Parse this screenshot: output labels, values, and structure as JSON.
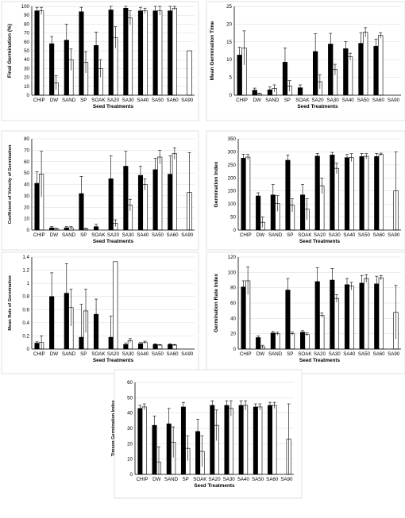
{
  "chart_data": [
    {
      "type": "bar",
      "ylabel": "Final Germination (%)",
      "xlabel": "Seed Treatments",
      "ylim": [
        0,
        100
      ],
      "yticks": [
        0,
        10,
        20,
        30,
        40,
        50,
        60,
        70,
        80,
        90,
        100
      ],
      "grid": true,
      "categories": [
        "CHIP",
        "DW",
        "SAND",
        "SP",
        "SOAK",
        "SA20",
        "SA30",
        "SA40",
        "SA50",
        "SA60",
        "SA90"
      ],
      "series": [
        {
          "values": [
            95,
            58,
            62,
            94,
            56,
            96,
            98,
            95,
            95,
            95,
            0
          ],
          "errors": [
            4,
            8,
            18,
            5,
            15,
            4,
            2,
            4,
            5,
            5,
            0
          ]
        },
        {
          "values": [
            95,
            14,
            40,
            37,
            30,
            65,
            87,
            95,
            95,
            98,
            50
          ],
          "errors": [
            4,
            8,
            12,
            12,
            10,
            12,
            8,
            3,
            5,
            2,
            0
          ]
        }
      ]
    },
    {
      "type": "bar",
      "ylabel": "Mean Germination Time",
      "xlabel": "Seed Treatments",
      "ylim": [
        0,
        25
      ],
      "yticks": [
        0,
        5,
        10,
        15,
        20,
        25
      ],
      "grid": true,
      "categories": [
        "CHIP",
        "DW",
        "SAND",
        "SP",
        "SOAK",
        "SA20",
        "SA30",
        "SA40",
        "SA50",
        "SA60",
        "SA90"
      ],
      "series": [
        {
          "values": [
            11.3,
            1.4,
            1.5,
            9.3,
            2.1,
            12.3,
            14.4,
            13.1,
            14.6,
            13.8,
            0
          ],
          "errors": [
            2.2,
            0.6,
            0.8,
            4,
            0.8,
            5,
            3,
            2,
            3,
            2,
            0
          ]
        },
        {
          "values": [
            13.3,
            0.4,
            1.9,
            2.6,
            0,
            3.8,
            7.2,
            10.8,
            17.7,
            16.8,
            0
          ],
          "errors": [
            4.8,
            0.2,
            1,
            1.5,
            0,
            2,
            1.5,
            1,
            1.3,
            0.8,
            0
          ]
        }
      ]
    },
    {
      "type": "bar",
      "ylabel": "Coefficient of Velocity of Germination",
      "xlabel": "Seed Treatments",
      "ylim": [
        0,
        80
      ],
      "yticks": [
        0,
        10,
        20,
        30,
        40,
        50,
        60,
        70,
        80
      ],
      "grid": true,
      "categories": [
        "CHIP",
        "DW",
        "SAND",
        "SP",
        "SOAK",
        "SA20",
        "SA30",
        "SA40",
        "SA50",
        "SA60",
        "SA90"
      ],
      "series": [
        {
          "values": [
            41,
            2,
            2,
            32,
            3,
            45,
            56,
            48,
            53,
            49,
            0
          ],
          "errors": [
            10,
            1,
            1,
            15,
            2,
            20,
            13,
            8,
            10,
            16,
            0
          ]
        },
        {
          "values": [
            49,
            1,
            2,
            1,
            0,
            6,
            22,
            40,
            64,
            67,
            33
          ],
          "errors": [
            20,
            0.5,
            1,
            0.5,
            0,
            3,
            5,
            5,
            6,
            5,
            35
          ]
        }
      ]
    },
    {
      "type": "bar",
      "ylabel": "Germination Index",
      "xlabel": "Seed Treatments",
      "ylim": [
        0,
        350
      ],
      "yticks": [
        0,
        50,
        100,
        150,
        200,
        250,
        300,
        350
      ],
      "grid": true,
      "categories": [
        "CHIP",
        "DW",
        "SAND",
        "SP",
        "SOAK",
        "SA20",
        "SA30",
        "SA40",
        "SA50",
        "SA60",
        "SA90"
      ],
      "series": [
        {
          "values": [
            276,
            131,
            135,
            268,
            135,
            284,
            288,
            278,
            282,
            282,
            0
          ],
          "errors": [
            15,
            12,
            40,
            20,
            40,
            10,
            10,
            12,
            12,
            12,
            0
          ]
        },
        {
          "values": [
            280,
            30,
            102,
            95,
            80,
            170,
            237,
            278,
            283,
            290,
            150
          ],
          "errors": [
            10,
            20,
            30,
            25,
            40,
            30,
            20,
            15,
            10,
            5,
            150
          ]
        }
      ]
    },
    {
      "type": "bar",
      "ylabel": "Mean Rate of Germination",
      "xlabel": "Seed Treatments",
      "ylim": [
        0,
        1.4
      ],
      "yticks": [
        0,
        0.2,
        0.4,
        0.6,
        0.8,
        1,
        1.2,
        1.4
      ],
      "grid": true,
      "categories": [
        "CHIP",
        "DW",
        "SAND",
        "SP",
        "SOAK",
        "SA20",
        "SA30",
        "SA40",
        "SA50",
        "SA60",
        "SA90"
      ],
      "series": [
        {
          "values": [
            0.09,
            0.8,
            0.85,
            0.18,
            0.53,
            0.18,
            0.07,
            0.08,
            0.07,
            0.07,
            0
          ],
          "errors": [
            0.02,
            0.36,
            0.45,
            0.5,
            0.23,
            0.32,
            0.02,
            0.02,
            0.01,
            0.01,
            0
          ]
        },
        {
          "values": [
            0.1,
            0,
            0.63,
            0.58,
            0,
            1.33,
            0.13,
            0.1,
            0.06,
            0.06,
            0
          ],
          "errors": [
            0.1,
            0,
            0.28,
            0.33,
            0,
            0,
            0.03,
            0.02,
            0.01,
            0.01,
            0
          ]
        }
      ]
    },
    {
      "type": "bar",
      "ylabel": "Germination Rate Index",
      "xlabel": "Seed Treatments",
      "ylim": [
        0,
        120
      ],
      "yticks": [
        0,
        20,
        40,
        60,
        80,
        100,
        120
      ],
      "grid": true,
      "categories": [
        "CHIP",
        "DW",
        "SAND",
        "SP",
        "SOAK",
        "SA20",
        "SA30",
        "SA40",
        "SA50",
        "SA60",
        "SA90"
      ],
      "series": [
        {
          "values": [
            81,
            15,
            21,
            77,
            22,
            88,
            90,
            84,
            86,
            85,
            0
          ],
          "errors": [
            8,
            2,
            2,
            15,
            2,
            18,
            15,
            8,
            10,
            10,
            0
          ]
        },
        {
          "values": [
            89,
            3,
            20,
            20,
            19,
            44,
            66,
            82,
            92,
            93,
            48
          ],
          "errors": [
            18,
            2,
            2,
            2,
            2,
            3,
            5,
            5,
            5,
            3,
            35
          ]
        }
      ]
    },
    {
      "type": "bar",
      "ylabel": "Timson Germination Index",
      "xlabel": "Seed Treatments",
      "ylim": [
        0,
        60
      ],
      "yticks": [
        0,
        10,
        20,
        30,
        40,
        50,
        60
      ],
      "grid": true,
      "categories": [
        "CHIP",
        "DW",
        "SAND",
        "SP",
        "SOAK",
        "SA20",
        "SA30",
        "SA40",
        "SA50",
        "SA60",
        "SA90"
      ],
      "series": [
        {
          "values": [
            43,
            32,
            33,
            44,
            28,
            45,
            45,
            45,
            44,
            45,
            0
          ],
          "errors": [
            2,
            6,
            10,
            3,
            8,
            3,
            3,
            3,
            2,
            2,
            0
          ]
        },
        {
          "values": [
            44,
            8,
            21,
            17,
            15,
            32,
            43,
            45,
            44,
            45,
            23
          ],
          "errors": [
            2,
            10,
            10,
            8,
            10,
            10,
            5,
            3,
            2,
            2,
            23
          ]
        }
      ]
    }
  ]
}
